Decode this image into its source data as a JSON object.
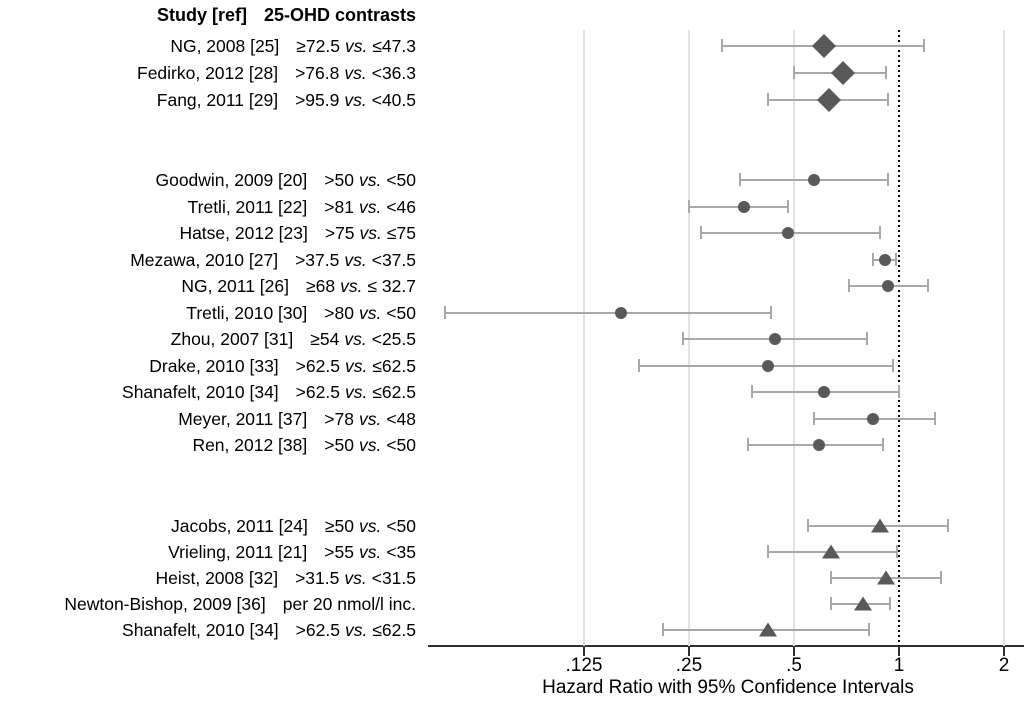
{
  "figure": {
    "header": {
      "study_col": "Study [ref]",
      "contrast_col": "25-OHD contrasts"
    }
  },
  "chart_data": {
    "type": "scatter",
    "subtype": "forest-plot",
    "title": "",
    "xlabel": "Hazard Ratio with 95% Confidence Intervals",
    "x_scale": "log2",
    "x_axis": {
      "ticks": [
        {
          "label": ".125",
          "value": 0.125
        },
        {
          "label": ".25",
          "value": 0.25
        },
        {
          "label": ".5",
          "value": 0.5
        },
        {
          "label": "1",
          "value": 1
        },
        {
          "label": "2",
          "value": 2
        }
      ],
      "gridlines_at": [
        0.125,
        0.25,
        0.5,
        2
      ],
      "reference_line": {
        "value": 1,
        "style": "dotted"
      },
      "x_range_approx": [
        0.045,
        2.28
      ]
    },
    "colors": {
      "marker": "#595959",
      "whisker": "#a8a8a8",
      "gridline": "#e2e2e2",
      "axis": "#2f2f2f",
      "reference_line": "#000000"
    },
    "legend": "none",
    "groups": [
      {
        "marker": "diamond",
        "studies": [
          {
            "study": "NG, 2008 [25]",
            "contrast_left": "≥72.5",
            "vs": "vs.",
            "contrast_right": "≤47.3",
            "hr": 0.61,
            "ci_low": 0.31,
            "ci_high": 1.18
          },
          {
            "study": "Fedirko, 2012 [28]",
            "contrast_left": ">76.8",
            "vs": "vs.",
            "contrast_right": "<36.3",
            "hr": 0.69,
            "ci_low": 0.5,
            "ci_high": 0.92
          },
          {
            "study": "Fang, 2011 [29]",
            "contrast_left": ">95.9",
            "vs": "vs.",
            "contrast_right": "<40.5",
            "hr": 0.63,
            "ci_low": 0.42,
            "ci_high": 0.93
          }
        ]
      },
      {
        "marker": "circle",
        "studies": [
          {
            "study": "Goodwin, 2009 [20]",
            "contrast_left": ">50",
            "vs": "vs.",
            "contrast_right": "<50",
            "hr": 0.57,
            "ci_low": 0.35,
            "ci_high": 0.93
          },
          {
            "study": "Tretli, 2011 [22]",
            "contrast_left": ">81",
            "vs": "vs.",
            "contrast_right": "<46",
            "hr": 0.36,
            "ci_low": 0.25,
            "ci_high": 0.48
          },
          {
            "study": "Hatse, 2012 [23]",
            "contrast_left": ">75",
            "vs": "vs.",
            "contrast_right": "≤75",
            "hr": 0.48,
            "ci_low": 0.27,
            "ci_high": 0.88
          },
          {
            "study": "Mezawa, 2010 [27]",
            "contrast_left": ">37.5",
            "vs": "vs.",
            "contrast_right": "<37.5",
            "hr": 0.91,
            "ci_low": 0.84,
            "ci_high": 0.98
          },
          {
            "study": "NG, 2011 [26]",
            "contrast_left": "≥68",
            "vs": "vs.",
            "contrast_right": "≤ 32.7",
            "hr": 0.93,
            "ci_low": 0.72,
            "ci_high": 1.21
          },
          {
            "study": "Tretli, 2010 [30]",
            "contrast_left": ">80",
            "vs": "vs.",
            "contrast_right": "<50",
            "hr": 0.16,
            "ci_low": 0.05,
            "ci_high": 0.43
          },
          {
            "study": "Zhou, 2007 [31]",
            "contrast_left": "≥54",
            "vs": "vs.",
            "contrast_right": "<25.5",
            "hr": 0.44,
            "ci_low": 0.24,
            "ci_high": 0.81
          },
          {
            "study": "Drake, 2010 [33]",
            "contrast_left": ">62.5",
            "vs": "vs.",
            "contrast_right": "≤62.5",
            "hr": 0.42,
            "ci_low": 0.18,
            "ci_high": 0.96
          },
          {
            "study": "Shanafelt, 2010 [34]",
            "contrast_left": ">62.5",
            "vs": "vs.",
            "contrast_right": "≤62.5",
            "hr": 0.61,
            "ci_low": 0.38,
            "ci_high": 1.0
          },
          {
            "study": "Meyer, 2011 [37]",
            "contrast_left": ">78",
            "vs": "vs.",
            "contrast_right": "<48",
            "hr": 0.84,
            "ci_low": 0.57,
            "ci_high": 1.27
          },
          {
            "study": "Ren, 2012 [38]",
            "contrast_left": ">50",
            "vs": "vs.",
            "contrast_right": "<50",
            "hr": 0.59,
            "ci_low": 0.37,
            "ci_high": 0.9
          }
        ]
      },
      {
        "marker": "triangle",
        "studies": [
          {
            "study": "Jacobs, 2011 [24]",
            "contrast_left": "≥50",
            "vs": "vs.",
            "contrast_right": "<50",
            "hr": 0.88,
            "ci_low": 0.55,
            "ci_high": 1.38
          },
          {
            "study": "Vrieling, 2011 [21]",
            "contrast_left": ">55",
            "vs": "vs.",
            "contrast_right": "<35",
            "hr": 0.64,
            "ci_low": 0.42,
            "ci_high": 0.99
          },
          {
            "study": "Heist, 2008 [32]",
            "contrast_left": ">31.5",
            "vs": "vs.",
            "contrast_right": "<31.5",
            "hr": 0.92,
            "ci_low": 0.64,
            "ci_high": 1.32
          },
          {
            "study": "Newton-Bishop, 2009 [36]",
            "contrast_left": "per 20 nmol/l inc.",
            "vs": "",
            "contrast_right": "",
            "hr": 0.79,
            "ci_low": 0.64,
            "ci_high": 0.94
          },
          {
            "study": "Shanafelt, 2010 [34]",
            "contrast_left": ">62.5",
            "vs": "vs.",
            "contrast_right": "≤62.5",
            "hr": 0.42,
            "ci_low": 0.21,
            "ci_high": 0.82
          }
        ]
      }
    ]
  }
}
